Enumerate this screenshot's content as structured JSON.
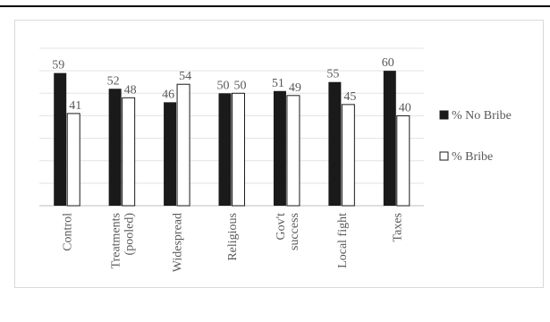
{
  "chart_data": {
    "type": "bar",
    "categories": [
      "Control",
      "Treatments (pooled)",
      "Widespread",
      "Religious",
      "Gov't success",
      "Local fight",
      "Taxes"
    ],
    "category_label_lines": [
      [
        "Control"
      ],
      [
        "Treatments",
        "(pooled)"
      ],
      [
        "Widespread"
      ],
      [
        "Religious"
      ],
      [
        "Gov't",
        "success"
      ],
      [
        "Local fight"
      ],
      [
        "Taxes"
      ]
    ],
    "series": [
      {
        "name": "% No Bribe",
        "values": [
          59,
          52,
          46,
          50,
          51,
          55,
          60
        ],
        "color": "#1a1a1a"
      },
      {
        "name": "% Bribe",
        "values": [
          41,
          48,
          54,
          50,
          49,
          45,
          40
        ],
        "color": "#ffffff"
      }
    ],
    "ylim": [
      0,
      70
    ],
    "grid": true,
    "legend_position": "right",
    "title": "",
    "xlabel": "",
    "ylabel": ""
  }
}
